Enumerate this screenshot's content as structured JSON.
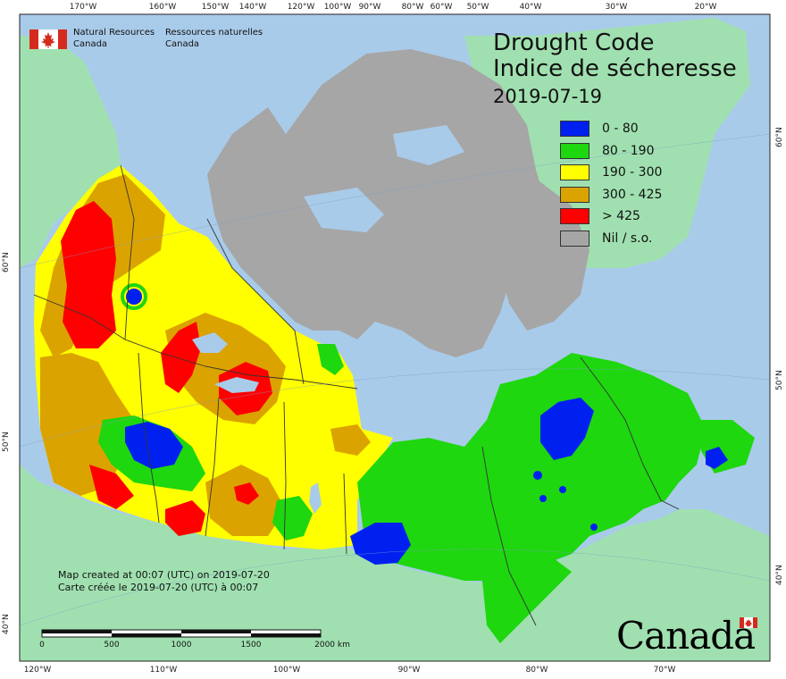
{
  "title": {
    "line1": "Drought Code",
    "line2": "Indice de sécheresse",
    "date": "2019-07-19"
  },
  "agency": {
    "name_en_line1": "Natural Resources",
    "name_en_line2": "Canada",
    "name_fr_line1": "Ressources naturelles",
    "name_fr_line2": "Canada"
  },
  "legend": [
    {
      "label": "0 - 80",
      "color": "#0020f0"
    },
    {
      "label": "80 - 190",
      "color": "#1ed70e"
    },
    {
      "label": "190 - 300",
      "color": "#ffff00"
    },
    {
      "label": "300 - 425",
      "color": "#dba300"
    },
    {
      "label": "> 425",
      "color": "#ff0000"
    },
    {
      "label": "Nil / s.o.",
      "color": "#a6a6a6"
    }
  ],
  "credit": {
    "line_en": "Map created at 00:07 (UTC) on 2019-07-20",
    "line_fr": "Carte créée le 2019-07-20 (UTC) à 00:07"
  },
  "scale_bar": {
    "labels": [
      "0",
      "500",
      "1000",
      "1500",
      "2000 km"
    ]
  },
  "wordmark": "Canada",
  "graticule": {
    "top": [
      "170°W",
      "160°W",
      "150°W",
      "140°W",
      "120°W",
      "100°W",
      "90°W",
      "80°W",
      "60°W",
      "50°W",
      "40°W",
      "30°W",
      "20°W"
    ],
    "bottom": [
      "120°W",
      "110°W",
      "100°W",
      "90°W",
      "80°W",
      "70°W"
    ],
    "left": [
      "60°N",
      "50°N",
      "40°N"
    ],
    "right": [
      "60°N",
      "50°N",
      "40°N"
    ]
  },
  "colors": {
    "ocean": "#a9cbea",
    "foreign_land": "#a0e0b0",
    "no_data": "#a6a6a6",
    "border": "#333333"
  }
}
